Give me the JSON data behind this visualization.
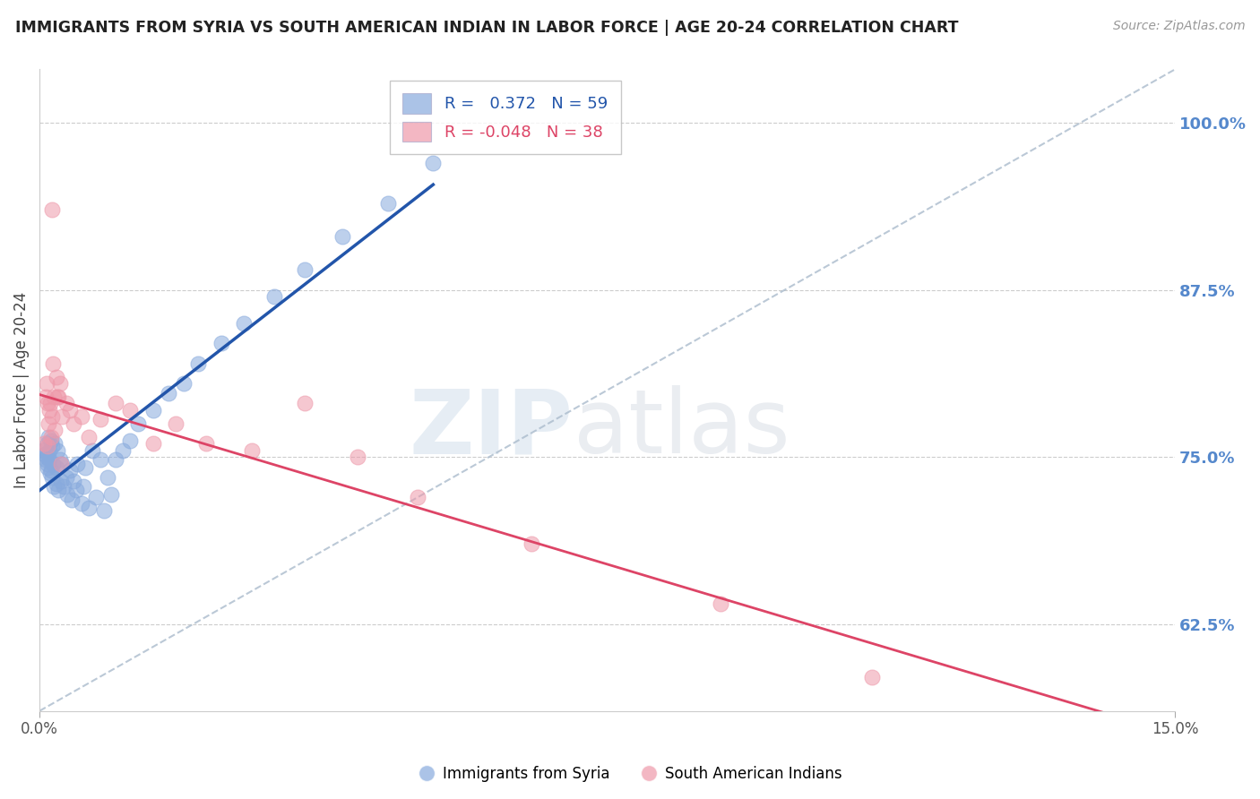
{
  "title": "IMMIGRANTS FROM SYRIA VS SOUTH AMERICAN INDIAN IN LABOR FORCE | AGE 20-24 CORRELATION CHART",
  "source": "Source: ZipAtlas.com",
  "ylabel": "In Labor Force | Age 20-24",
  "xlim": [
    0.0,
    15.0
  ],
  "ylim": [
    56.0,
    104.0
  ],
  "yticks": [
    62.5,
    75.0,
    87.5,
    100.0
  ],
  "xtick_labels": [
    "0.0%",
    "15.0%"
  ],
  "ytick_labels": [
    "62.5%",
    "75.0%",
    "87.5%",
    "100.0%"
  ],
  "legend_label1": "Immigrants from Syria",
  "legend_label2": "South American Indians",
  "R1": 0.372,
  "N1": 59,
  "R2": -0.048,
  "N2": 38,
  "color1": "#88aadd",
  "color2": "#ee99aa",
  "trend_color1": "#2255aa",
  "trend_color2": "#dd4466",
  "ref_line_color": "#aabbcc",
  "background_color": "#ffffff",
  "watermark_zip": "ZIP",
  "watermark_atlas": "atlas",
  "blue_x": [
    0.05,
    0.07,
    0.08,
    0.09,
    0.1,
    0.1,
    0.11,
    0.11,
    0.12,
    0.13,
    0.13,
    0.14,
    0.15,
    0.15,
    0.16,
    0.17,
    0.18,
    0.19,
    0.2,
    0.22,
    0.22,
    0.24,
    0.25,
    0.27,
    0.28,
    0.3,
    0.32,
    0.35,
    0.37,
    0.4,
    0.42,
    0.45,
    0.48,
    0.5,
    0.55,
    0.58,
    0.6,
    0.65,
    0.7,
    0.75,
    0.8,
    0.85,
    0.9,
    0.95,
    1.0,
    1.1,
    1.2,
    1.3,
    1.5,
    1.7,
    1.9,
    2.1,
    2.4,
    2.7,
    3.1,
    3.5,
    4.0,
    4.6,
    5.2
  ],
  "blue_y": [
    75.5,
    75.2,
    74.8,
    75.0,
    76.0,
    74.5,
    75.3,
    74.2,
    76.5,
    74.8,
    75.5,
    73.8,
    76.2,
    74.0,
    75.8,
    73.5,
    74.5,
    72.8,
    76.0,
    74.2,
    73.0,
    75.5,
    72.5,
    74.8,
    73.2,
    74.5,
    72.8,
    73.5,
    72.2,
    74.0,
    71.8,
    73.2,
    72.5,
    74.5,
    71.5,
    72.8,
    74.2,
    71.2,
    75.5,
    72.0,
    74.8,
    71.0,
    73.5,
    72.2,
    74.8,
    75.5,
    76.2,
    77.5,
    78.5,
    79.8,
    80.5,
    82.0,
    83.5,
    85.0,
    87.0,
    89.0,
    91.5,
    94.0,
    97.0
  ],
  "pink_x": [
    0.06,
    0.08,
    0.09,
    0.1,
    0.11,
    0.12,
    0.13,
    0.14,
    0.15,
    0.17,
    0.19,
    0.2,
    0.22,
    0.25,
    0.27,
    0.3,
    0.35,
    0.4,
    0.45,
    0.55,
    0.65,
    0.8,
    1.0,
    1.2,
    1.5,
    1.8,
    2.2,
    2.8,
    3.5,
    4.2,
    0.16,
    0.18,
    0.23,
    0.28,
    5.0,
    6.5,
    9.0,
    11.0
  ],
  "pink_y": [
    76.0,
    79.5,
    80.5,
    75.8,
    79.0,
    77.5,
    78.5,
    79.0,
    76.5,
    78.0,
    79.5,
    77.0,
    81.0,
    79.5,
    80.5,
    78.0,
    79.0,
    78.5,
    77.5,
    78.0,
    76.5,
    77.8,
    79.0,
    78.5,
    76.0,
    77.5,
    76.0,
    75.5,
    79.0,
    75.0,
    93.5,
    82.0,
    79.5,
    74.5,
    72.0,
    68.5,
    64.0,
    58.5
  ]
}
